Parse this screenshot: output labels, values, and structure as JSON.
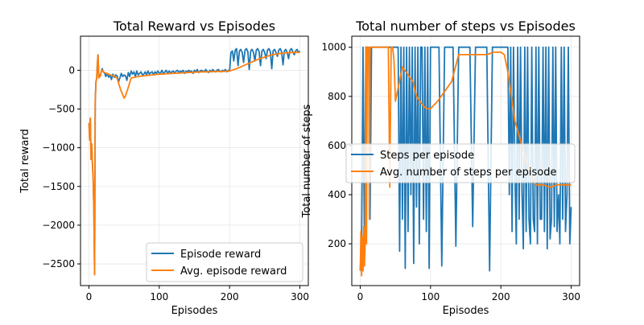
{
  "colors": {
    "series_1": "#1f77b4",
    "series_2": "#ff7f0e",
    "grid": "#e6e6e6",
    "axis": "#000000"
  },
  "chart_data": [
    {
      "type": "line",
      "title": "Total Reward vs Episodes",
      "xlabel": "Episodes",
      "ylabel": "Total reward",
      "xlim": [
        -12,
        312
      ],
      "ylim": [
        -2780,
        440
      ],
      "xticks": [
        {
          "value": 0,
          "label": "0"
        },
        {
          "value": 100,
          "label": "100"
        },
        {
          "value": 200,
          "label": "200"
        },
        {
          "value": 300,
          "label": "300"
        }
      ],
      "yticks": [
        {
          "value": -2500,
          "label": "−2500"
        },
        {
          "value": -2000,
          "label": "−2000"
        },
        {
          "value": -1500,
          "label": "−1500"
        },
        {
          "value": -1000,
          "label": "−1000"
        },
        {
          "value": -500,
          "label": "−500"
        },
        {
          "value": 0,
          "label": "0"
        }
      ],
      "grid": true,
      "legend": "lower right",
      "series": [
        {
          "name": "Episode reward",
          "x": [
            0,
            1,
            2,
            3,
            4,
            5,
            6,
            7,
            8,
            9,
            10,
            11,
            12,
            13,
            14,
            15,
            16,
            17,
            18,
            19,
            20,
            22,
            24,
            26,
            28,
            30,
            32,
            34,
            36,
            38,
            40,
            42,
            44,
            46,
            48,
            50,
            52,
            54,
            56,
            58,
            60,
            62,
            64,
            66,
            68,
            70,
            72,
            74,
            76,
            78,
            80,
            82,
            84,
            86,
            88,
            90,
            92,
            94,
            96,
            98,
            100,
            102,
            104,
            106,
            108,
            110,
            112,
            114,
            116,
            118,
            120,
            122,
            124,
            126,
            128,
            130,
            132,
            134,
            136,
            138,
            140,
            142,
            144,
            146,
            148,
            150,
            152,
            154,
            156,
            158,
            160,
            162,
            164,
            166,
            168,
            170,
            172,
            174,
            176,
            178,
            180,
            182,
            184,
            186,
            188,
            190,
            192,
            194,
            196,
            198,
            200,
            202,
            204,
            206,
            208,
            210,
            212,
            214,
            216,
            218,
            220,
            222,
            224,
            226,
            228,
            230,
            232,
            234,
            236,
            238,
            240,
            242,
            244,
            246,
            248,
            250,
            252,
            254,
            256,
            258,
            260,
            262,
            264,
            266,
            268,
            270,
            272,
            274,
            276,
            278,
            280,
            282,
            284,
            286,
            288,
            290,
            292,
            294,
            296,
            298,
            300
          ],
          "values": [
            -680,
            -900,
            -620,
            -1150,
            -950,
            -1200,
            -1400,
            -1800,
            -2640,
            -400,
            -150,
            -100,
            100,
            200,
            -100,
            -60,
            -80,
            -40,
            0,
            20,
            -20,
            -30,
            -80,
            -40,
            -90,
            -60,
            -120,
            -50,
            -90,
            -60,
            -70,
            -150,
            -100,
            -40,
            -80,
            -60,
            -70,
            -130,
            -30,
            -80,
            -10,
            -50,
            -20,
            -80,
            -10,
            -60,
            -40,
            -20,
            -60,
            -50,
            -20,
            -60,
            -10,
            -50,
            -30,
            -20,
            -60,
            -20,
            -40,
            -10,
            -40,
            -30,
            0,
            -50,
            -20,
            0,
            -40,
            -10,
            -30,
            -20,
            -10,
            -40,
            -10,
            0,
            -30,
            -10,
            -20,
            0,
            -40,
            -10,
            -20,
            0,
            -20,
            -10,
            -40,
            0,
            -20,
            10,
            -30,
            -10,
            0,
            -10,
            -20,
            10,
            -10,
            -30,
            0,
            -20,
            10,
            -10,
            -20,
            0,
            10,
            -10,
            -20,
            0,
            -10,
            10,
            -20,
            0,
            -10,
            230,
            250,
            120,
            260,
            280,
            60,
            250,
            270,
            230,
            100,
            260,
            280,
            240,
            10,
            250,
            270,
            230,
            120,
            260,
            280,
            240,
            60,
            250,
            270,
            230,
            150,
            260,
            280,
            240,
            20,
            250,
            270,
            230,
            180,
            260,
            280,
            240,
            70,
            250,
            270,
            230,
            150,
            260,
            280,
            240,
            200,
            250,
            270,
            230,
            250
          ]
        },
        {
          "name": "Avg. episode reward",
          "x": [
            0,
            1,
            2,
            3,
            4,
            5,
            6,
            7,
            8,
            9,
            10,
            11,
            12,
            13,
            14,
            15,
            16,
            17,
            18,
            19,
            20,
            25,
            30,
            35,
            40,
            45,
            50,
            52,
            55,
            60,
            70,
            80,
            90,
            100,
            110,
            120,
            130,
            140,
            150,
            160,
            170,
            180,
            190,
            200,
            210,
            220,
            230,
            240,
            250,
            260,
            270,
            280,
            290,
            300
          ],
          "values": [
            -680,
            -900,
            -620,
            -1150,
            -950,
            -1200,
            -1400,
            -1800,
            -2640,
            -400,
            -150,
            -100,
            100,
            200,
            -100,
            -60,
            -80,
            -40,
            0,
            0,
            -20,
            -40,
            -60,
            -70,
            -100,
            -250,
            -360,
            -330,
            -250,
            -100,
            -80,
            -70,
            -60,
            -50,
            -45,
            -40,
            -35,
            -30,
            -25,
            -20,
            -20,
            -15,
            -15,
            -10,
            20,
            60,
            100,
            140,
            170,
            200,
            215,
            225,
            230,
            230
          ]
        }
      ]
    },
    {
      "type": "line",
      "title": "Total number of steps vs Episodes",
      "xlabel": "Episodes",
      "ylabel": "Total number of steps",
      "xlim": [
        -12,
        312
      ],
      "ylim": [
        30,
        1045
      ],
      "xticks": [
        {
          "value": 0,
          "label": "0"
        },
        {
          "value": 100,
          "label": "100"
        },
        {
          "value": 200,
          "label": "200"
        },
        {
          "value": 300,
          "label": "300"
        }
      ],
      "yticks": [
        {
          "value": 200,
          "label": "200"
        },
        {
          "value": 400,
          "label": "400"
        },
        {
          "value": 600,
          "label": "600"
        },
        {
          "value": 800,
          "label": "800"
        },
        {
          "value": 1000,
          "label": "1000"
        }
      ],
      "grid": true,
      "legend": "center left",
      "series": [
        {
          "name": "Steps per episode",
          "x": [
            0,
            2,
            4,
            6,
            8,
            10,
            12,
            14,
            16,
            18,
            20,
            22,
            24,
            26,
            28,
            30,
            32,
            34,
            36,
            38,
            40,
            42,
            44,
            46,
            48,
            50,
            52,
            54,
            56,
            58,
            60,
            62,
            64,
            66,
            68,
            70,
            72,
            74,
            76,
            78,
            80,
            82,
            84,
            86,
            88,
            90,
            92,
            94,
            96,
            98,
            100,
            104,
            108,
            112,
            116,
            120,
            124,
            128,
            132,
            136,
            140,
            144,
            148,
            152,
            156,
            160,
            164,
            168,
            172,
            176,
            180,
            184,
            188,
            192,
            196,
            200,
            204,
            208,
            210,
            212,
            214,
            216,
            218,
            220,
            222,
            224,
            226,
            228,
            230,
            232,
            234,
            236,
            238,
            240,
            242,
            244,
            246,
            248,
            250,
            252,
            254,
            256,
            258,
            260,
            262,
            264,
            266,
            268,
            270,
            272,
            274,
            276,
            278,
            280,
            282,
            284,
            286,
            288,
            290,
            292,
            294,
            296,
            298,
            300
          ],
          "values": [
            90,
            200,
            1000,
            200,
            1000,
            1000,
            1000,
            300,
            1000,
            1000,
            1000,
            1000,
            1000,
            1000,
            1000,
            1000,
            1000,
            1000,
            1000,
            1000,
            1000,
            1000,
            1000,
            1000,
            1000,
            1000,
            1000,
            1000,
            170,
            1000,
            300,
            1000,
            100,
            1000,
            250,
            1000,
            400,
            1000,
            120,
            1000,
            350,
            1000,
            200,
            1000,
            1000,
            300,
            1000,
            250,
            1000,
            100,
            1000,
            1000,
            1000,
            1000,
            110,
            1000,
            1000,
            1000,
            1000,
            190,
            1000,
            1000,
            1000,
            1000,
            1000,
            270,
            1000,
            1000,
            1000,
            1000,
            1000,
            90,
            1000,
            1000,
            1000,
            1000,
            1000,
            1000,
            1000,
            400,
            1000,
            250,
            1000,
            500,
            200,
            1000,
            300,
            1000,
            420,
            180,
            1000,
            250,
            1000,
            300,
            200,
            1000,
            300,
            250,
            1000,
            200,
            1000,
            300,
            300,
            1000,
            250,
            1000,
            180,
            1000,
            220,
            300,
            1000,
            270,
            1000,
            250,
            400,
            200,
            1000,
            300,
            1000,
            250,
            400,
            1000,
            200,
            350
          ],
          "note_hidden": []
        },
        {
          "name": "Avg. number of steps per episode",
          "x": [
            0,
            1,
            2,
            3,
            4,
            5,
            6,
            7,
            8,
            9,
            10,
            11,
            12,
            13,
            14,
            15,
            16,
            17,
            18,
            19,
            20,
            22,
            24,
            26,
            28,
            30,
            32,
            34,
            36,
            38,
            40,
            42,
            44,
            46,
            48,
            50,
            55,
            60,
            65,
            70,
            75,
            80,
            85,
            90,
            95,
            100,
            110,
            120,
            130,
            140,
            150,
            160,
            170,
            180,
            190,
            200,
            205,
            210,
            215,
            220,
            230,
            240,
            250,
            260,
            270,
            280,
            290,
            300
          ],
          "values": [
            90,
            250,
            70,
            230,
            90,
            270,
            110,
            200,
            1000,
            200,
            1000,
            1000,
            1000,
            300,
            1000,
            1000,
            1000,
            1000,
            1000,
            1000,
            1000,
            1000,
            1000,
            1000,
            1000,
            1000,
            1000,
            1000,
            1000,
            1000,
            1000,
            430,
            1000,
            1000,
            950,
            780,
            850,
            920,
            900,
            880,
            860,
            800,
            780,
            760,
            750,
            750,
            780,
            820,
            860,
            970,
            970,
            970,
            970,
            970,
            980,
            980,
            970,
            900,
            800,
            700,
            600,
            500,
            440,
            440,
            430,
            440,
            440,
            440
          ]
        }
      ]
    }
  ]
}
